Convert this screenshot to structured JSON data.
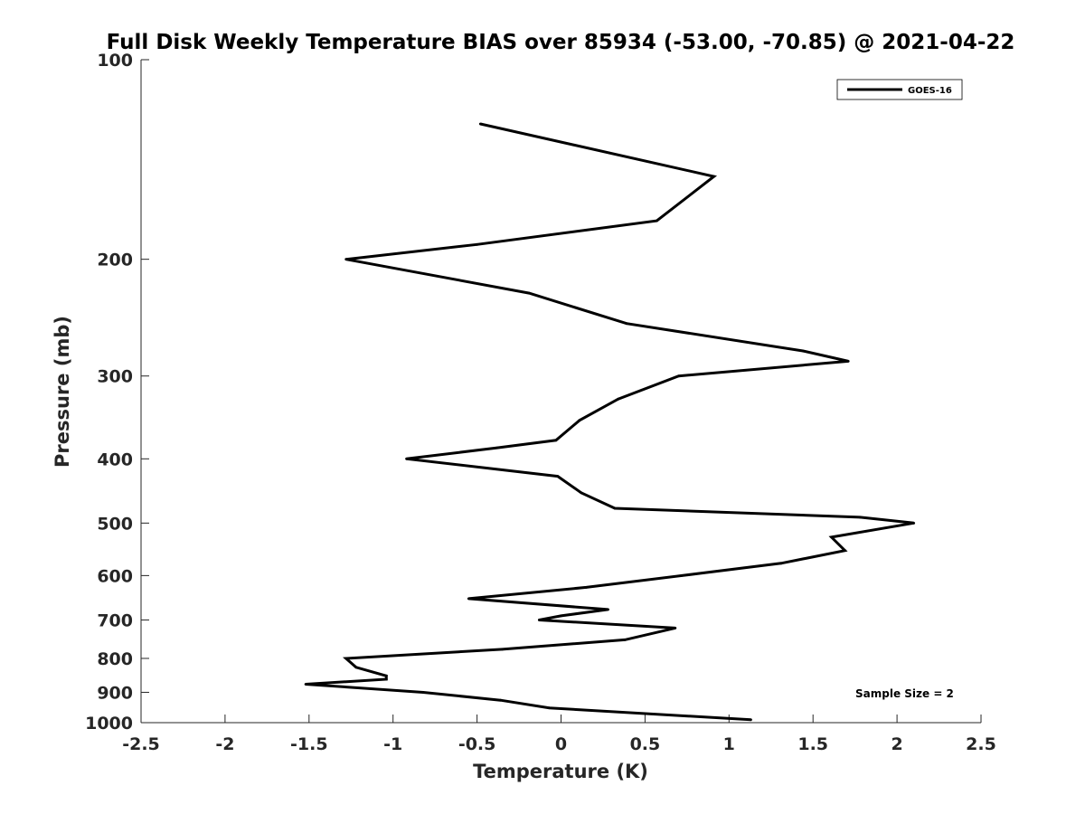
{
  "chart_data": {
    "type": "line",
    "title": "Full Disk Weekly Temperature BIAS over 85934 (-53.00, -70.85) @ 2021-04-22",
    "xlabel": "Temperature (K)",
    "ylabel": "Pressure (mb)",
    "xlim": [
      -2.5,
      2.5
    ],
    "ylim": [
      100,
      1000
    ],
    "y_scale": "log",
    "y_reversed": true,
    "grid": false,
    "legend_position": "top-right",
    "x_ticks": [
      -2.5,
      -2,
      -1.5,
      -1,
      -0.5,
      0,
      0.5,
      1,
      1.5,
      2,
      2.5
    ],
    "x_tick_labels": [
      "-2.5",
      "-2",
      "-1.5",
      "-1",
      "-0.5",
      "0",
      "0.5",
      "1",
      "1.5",
      "2",
      "2.5"
    ],
    "y_ticks": [
      100,
      200,
      300,
      400,
      500,
      600,
      700,
      800,
      900,
      1000
    ],
    "y_tick_labels": [
      "100",
      "200",
      "300",
      "400",
      "500",
      "600",
      "700",
      "800",
      "900",
      "1000"
    ],
    "series": [
      {
        "name": "GOES-16",
        "color": "#000000",
        "points": [
          [
            -0.48,
            125
          ],
          [
            0.91,
            150
          ],
          [
            0.57,
            175
          ],
          [
            -0.5,
            190
          ],
          [
            -1.28,
            200
          ],
          [
            -0.19,
            225
          ],
          [
            0.39,
            250
          ],
          [
            1.44,
            275
          ],
          [
            1.71,
            285
          ],
          [
            0.7,
            300
          ],
          [
            0.34,
            325
          ],
          [
            0.11,
            350
          ],
          [
            -0.03,
            375
          ],
          [
            -0.38,
            385
          ],
          [
            -0.92,
            400
          ],
          [
            -0.02,
            425
          ],
          [
            0.12,
            450
          ],
          [
            0.32,
            475
          ],
          [
            1.78,
            490
          ],
          [
            2.1,
            500
          ],
          [
            1.61,
            525
          ],
          [
            1.69,
            550
          ],
          [
            1.31,
            575
          ],
          [
            0.72,
            600
          ],
          [
            0.15,
            625
          ],
          [
            -0.55,
            650
          ],
          [
            0.28,
            675
          ],
          [
            0.0,
            690
          ],
          [
            -0.13,
            700
          ],
          [
            0.68,
            720
          ],
          [
            0.38,
            750
          ],
          [
            -0.35,
            775
          ],
          [
            -1.28,
            800
          ],
          [
            -1.22,
            825
          ],
          [
            -1.04,
            850
          ],
          [
            -1.04,
            860
          ],
          [
            -1.52,
            875
          ],
          [
            -0.82,
            900
          ],
          [
            -0.36,
            925
          ],
          [
            -0.07,
            950
          ],
          [
            1.13,
            990
          ]
        ]
      }
    ],
    "annotations": [
      {
        "text": "Sample Size = 2",
        "position": "bottom-right"
      }
    ]
  }
}
